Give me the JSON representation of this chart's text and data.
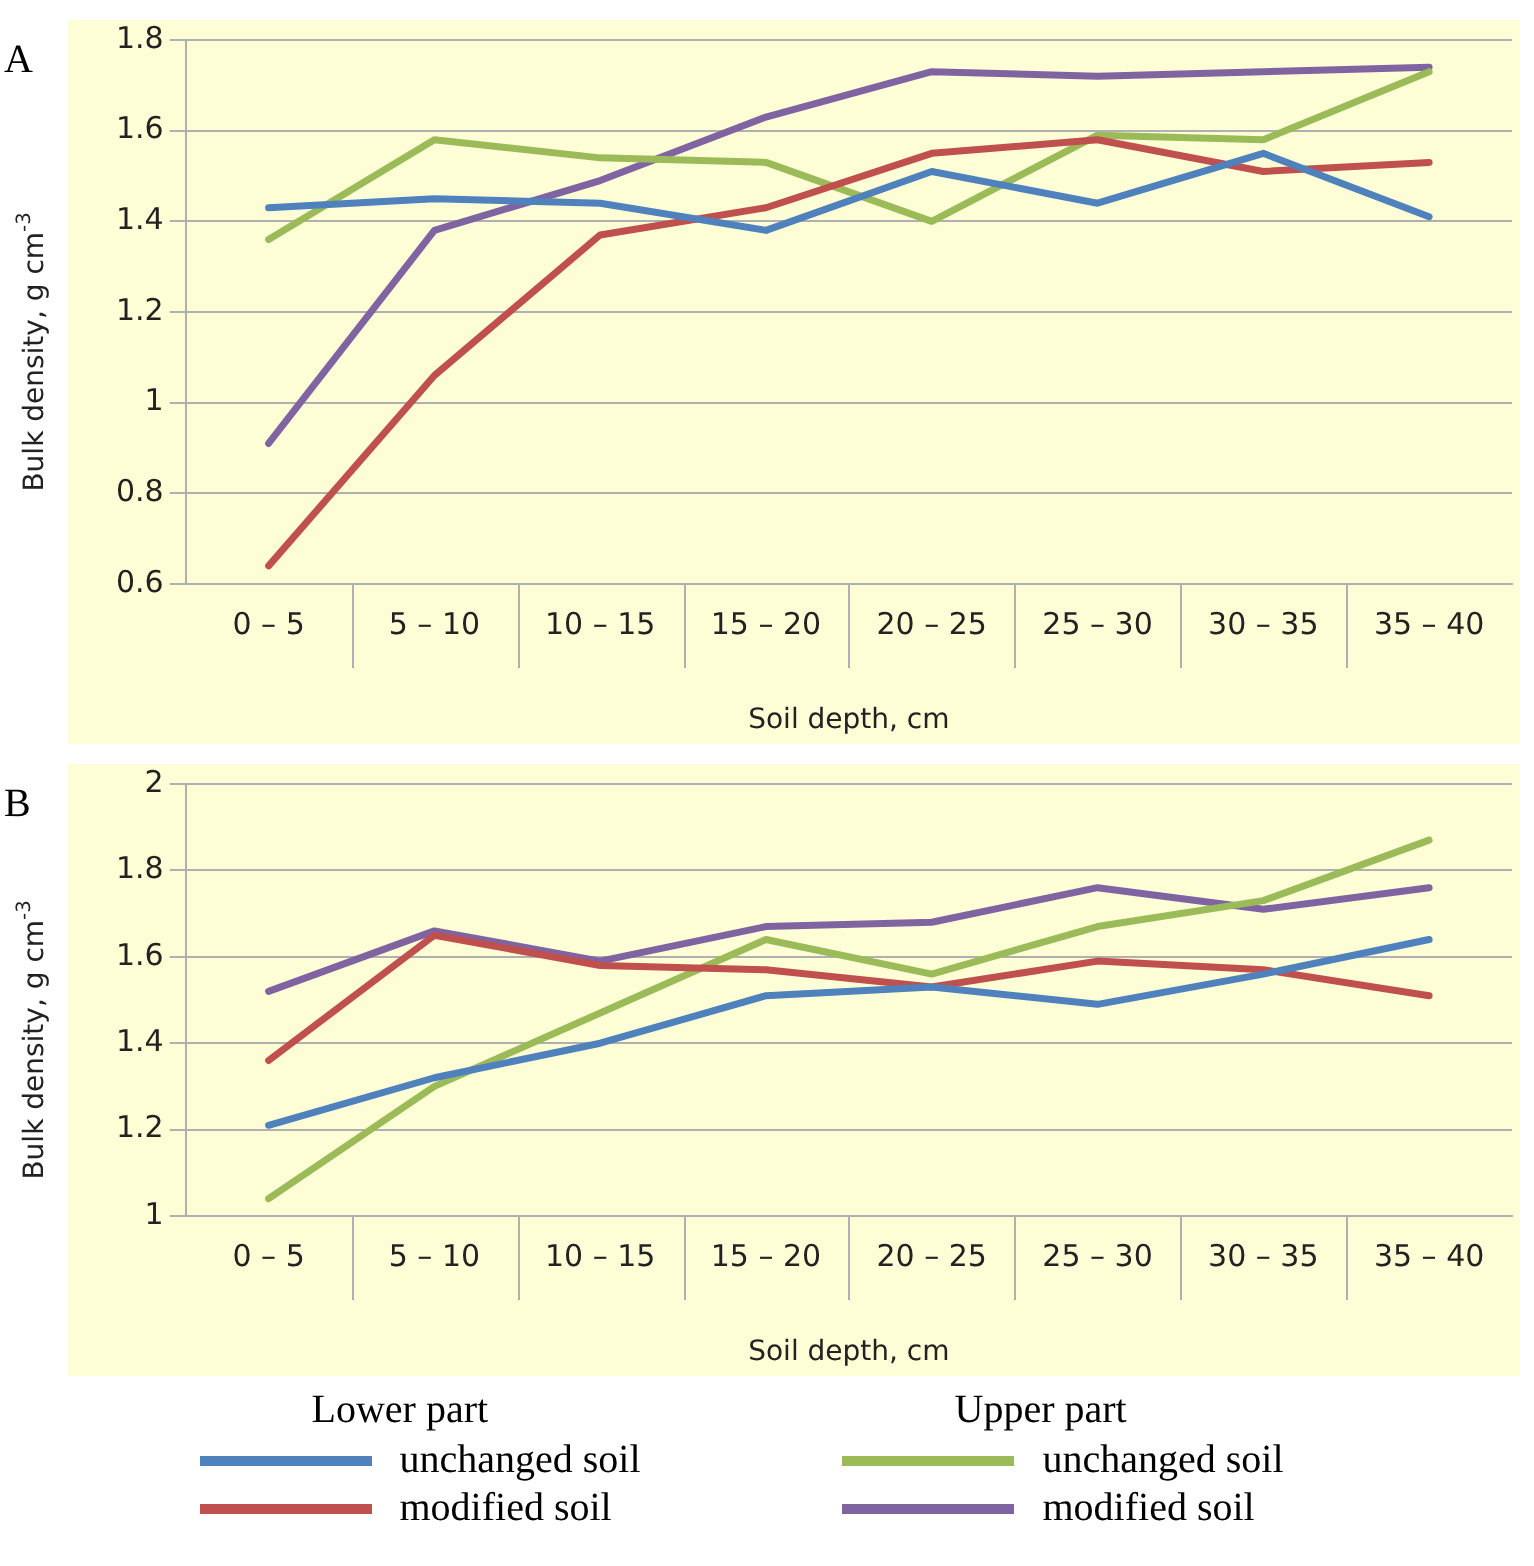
{
  "chart_data": [
    {
      "type": "line",
      "title": "A",
      "ylabel": "Bulk density, g cm$^{-3}$",
      "xlabel": "Soil depth, cm",
      "categories": [
        "0 – 5",
        "5 – 10",
        "10 – 15",
        "15 – 20",
        "20 – 25",
        "25 – 30",
        "30 – 35",
        "35 – 40"
      ],
      "ylim": [
        0.6,
        1.8
      ],
      "yticks": [
        {
          "value": 0.6,
          "label": "0.6"
        },
        {
          "value": 0.8,
          "label": "0.8"
        },
        1,
        1.2,
        1.4,
        1.6,
        1.8
      ],
      "grid": "y",
      "legend": false,
      "marker": "none",
      "series": [
        {
          "color": "#4f81bd",
          "values": [
            1.43,
            1.45,
            1.44,
            1.38,
            1.51,
            1.44,
            1.55,
            1.41
          ]
        },
        {
          "color": "#c0504d",
          "values": [
            0.64,
            1.06,
            1.37,
            1.43,
            1.55,
            1.58,
            1.51,
            1.53
          ]
        },
        {
          "color": "#9bbb59",
          "values": [
            1.36,
            1.58,
            1.54,
            1.53,
            1.4,
            1.59,
            1.58,
            1.73
          ]
        },
        {
          "color": "#8064a2",
          "values": [
            0.91,
            1.38,
            1.49,
            1.63,
            1.73,
            1.72,
            1.73,
            1.74
          ]
        }
      ]
    },
    {
      "type": "line",
      "title": "B",
      "ylabel": "Bulk density, g cm$^{-3}$",
      "xlabel": "Soil depth, cm",
      "categories": [
        "0 – 5",
        "5 – 10",
        "10 – 15",
        "15 – 20",
        "20 – 25",
        "25 – 30",
        "30 – 35",
        "35 – 40"
      ],
      "ylim": [
        1,
        2
      ],
      "yticks": [
        1,
        1.2,
        1.4,
        1.6,
        1.8,
        2
      ],
      "grid": "y",
      "legend": "bottom",
      "marker": "none",
      "annotations": [
        "Lower part",
        "Upper part"
      ],
      "series": [
        {
          "name": "unchanged soil",
          "color": "#4f81bd",
          "values": [
            1.21,
            1.32,
            1.4,
            1.51,
            1.53,
            1.49,
            1.56,
            1.64
          ]
        },
        {
          "name": "modified soil",
          "color": "#c0504d",
          "values": [
            1.36,
            1.65,
            1.58,
            1.57,
            1.53,
            1.59,
            1.57,
            1.51
          ]
        },
        {
          "name": "unchanged soil",
          "color": "#9bbb59",
          "values": [
            1.04,
            1.3,
            1.47,
            1.64,
            1.56,
            1.67,
            1.73,
            1.87
          ]
        },
        {
          "name": "modified soil",
          "color": "#8064a2",
          "values": [
            1.52,
            1.66,
            1.59,
            1.67,
            1.68,
            1.76,
            1.71,
            1.76
          ]
        }
      ]
    }
  ]
}
